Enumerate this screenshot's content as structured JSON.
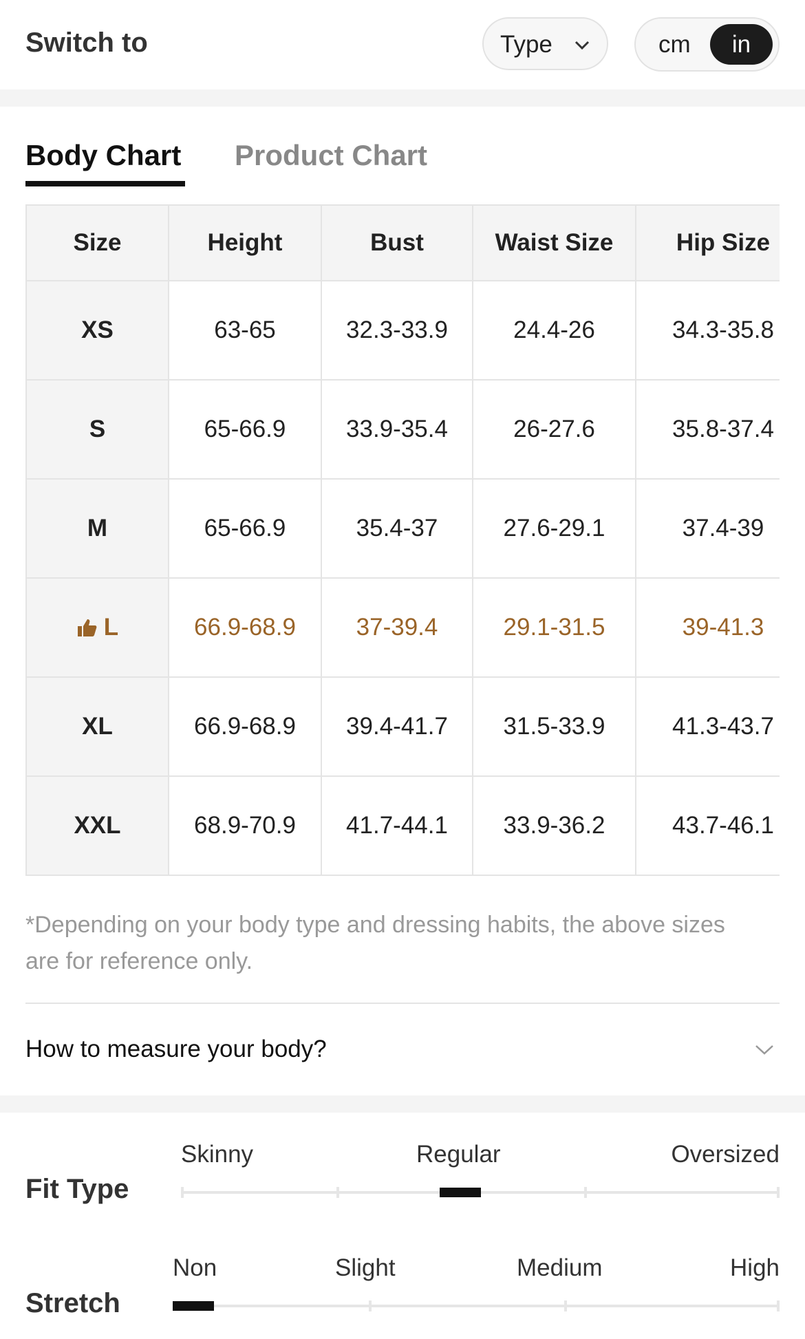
{
  "header": {
    "title": "Switch to",
    "type_button": "Type",
    "units": [
      "cm",
      "in"
    ]
  },
  "tabs": [
    "Body Chart",
    "Product Chart"
  ],
  "table": {
    "columns": [
      "Size",
      "Height",
      "Bust",
      "Waist Size",
      "Hip Size"
    ],
    "rows": [
      [
        "XS",
        "63-65",
        "32.3-33.9",
        "24.4-26",
        "34.3-35.8"
      ],
      [
        "S",
        "65-66.9",
        "33.9-35.4",
        "26-27.6",
        "35.8-37.4"
      ],
      [
        "M",
        "65-66.9",
        "35.4-37",
        "27.6-29.1",
        "37.4-39"
      ],
      [
        "L",
        "66.9-68.9",
        "37-39.4",
        "29.1-31.5",
        "39-41.3"
      ],
      [
        "XL",
        "66.9-68.9",
        "39.4-41.7",
        "31.5-33.9",
        "41.3-43.7"
      ],
      [
        "XXL",
        "68.9-70.9",
        "41.7-44.1",
        "33.9-36.2",
        "43.7-46.1"
      ]
    ]
  },
  "note": "*Depending on your body type and dressing habits, the above sizes are for reference only.",
  "measure": "How to measure your body?",
  "fit_type": {
    "label": "Fit Type",
    "options": [
      "Skinny",
      "Regular",
      "Oversized"
    ]
  },
  "stretch": {
    "label": "Stretch",
    "options": [
      "Non",
      "Slight",
      "Medium",
      "High"
    ]
  }
}
